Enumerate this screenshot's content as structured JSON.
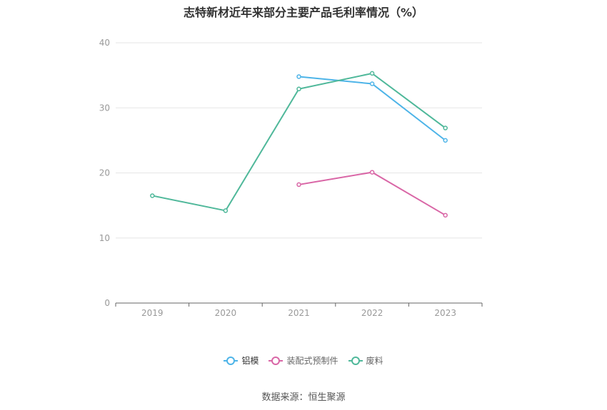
{
  "chart_data": {
    "type": "line",
    "title": "志特新材近年来部分主要产品毛利率情况（%）",
    "categories": [
      "2019",
      "2020",
      "2021",
      "2022",
      "2023"
    ],
    "ylim": [
      0,
      40
    ],
    "yticks": [
      0,
      10,
      20,
      30,
      40
    ],
    "grid": true,
    "legend_position": "bottom",
    "series": [
      {
        "name": "铝模",
        "color": "#4db4e8",
        "values": [
          null,
          null,
          34.8,
          33.7,
          25.0
        ]
      },
      {
        "name": "装配式预制件",
        "color": "#d966a6",
        "values": [
          null,
          null,
          18.2,
          20.1,
          13.5
        ]
      },
      {
        "name": "废料",
        "color": "#4fb89a",
        "values": [
          16.5,
          14.2,
          32.9,
          35.3,
          26.9
        ]
      }
    ]
  },
  "source": "数据来源：恒生聚源"
}
